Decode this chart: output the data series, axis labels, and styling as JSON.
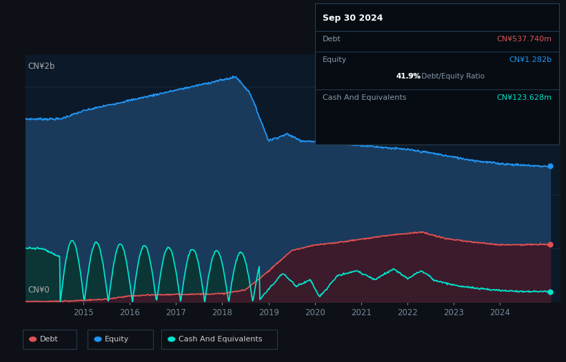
{
  "bg_color": "#0d1117",
  "plot_bg_color": "#0b1929",
  "equity_color": "#2196f3",
  "equity_fill": "#1a3a5c",
  "debt_color": "#e05252",
  "debt_fill": "#3d1a2a",
  "cash_color": "#00e5cc",
  "cash_fill": "#0a3530",
  "grid_color": "#1c2e40",
  "ylabel_top": "CN¥2b",
  "ylabel_bottom": "CN¥0",
  "tooltip": {
    "date": "Sep 30 2024",
    "debt_label": "Debt",
    "debt_value": "CN¥537.740m",
    "equity_label": "Equity",
    "equity_value": "CN¥1.282b",
    "ratio_value": "41.9%",
    "ratio_label": "Debt/Equity Ratio",
    "cash_label": "Cash And Equivalents",
    "cash_value": "CN¥123.628m"
  },
  "legend_items": [
    {
      "label": "Debt",
      "color": "#e05252"
    },
    {
      "label": "Equity",
      "color": "#2196f3"
    },
    {
      "label": "Cash And Equivalents",
      "color": "#00e5cc"
    }
  ]
}
